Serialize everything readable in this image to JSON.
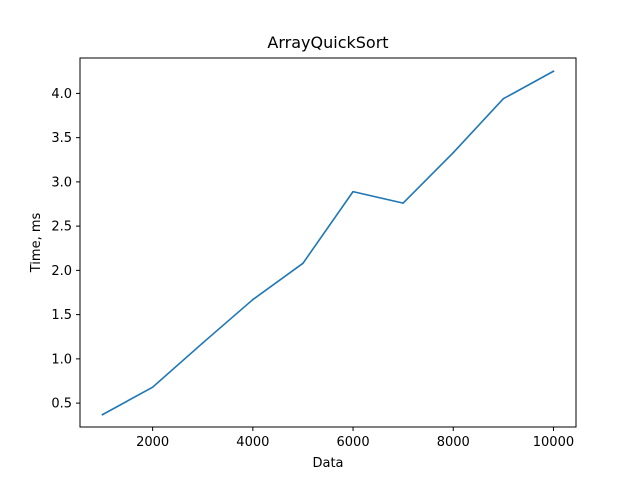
{
  "chart_data": {
    "type": "line",
    "title": "ArrayQuickSort",
    "xlabel": "Data",
    "ylabel": "Time, ms",
    "xlim": [
      550,
      10450
    ],
    "ylim": [
      0.23,
      4.4
    ],
    "xticks": [
      2000,
      4000,
      6000,
      8000,
      10000
    ],
    "xtick_labels": [
      "2000",
      "4000",
      "6000",
      "8000",
      "10000"
    ],
    "yticks": [
      0.5,
      1.0,
      1.5,
      2.0,
      2.5,
      3.0,
      3.5,
      4.0
    ],
    "ytick_labels": [
      "0.5",
      "1.0",
      "1.5",
      "2.0",
      "2.5",
      "3.0",
      "3.5",
      "4.0"
    ],
    "grid": false,
    "legend": "none",
    "series": [
      {
        "color": "#1f77b4",
        "x": [
          1000,
          2000,
          3000,
          4000,
          5000,
          6000,
          7000,
          8000,
          9000,
          10000
        ],
        "y": [
          0.37,
          0.68,
          1.18,
          1.67,
          2.08,
          2.89,
          2.76,
          3.33,
          3.94,
          4.25
        ]
      }
    ]
  }
}
